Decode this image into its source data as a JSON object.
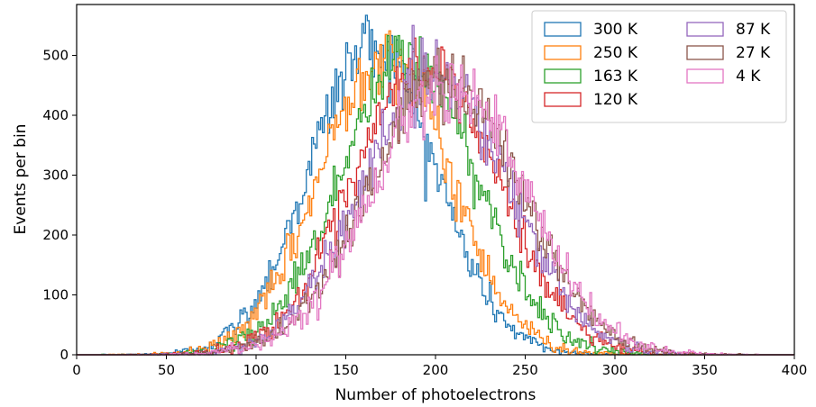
{
  "chart_data": {
    "type": "histogram",
    "xlabel": "Number of photoelectrons",
    "ylabel": "Events per bin",
    "xlim": [
      0,
      400
    ],
    "ylim": [
      0,
      585
    ],
    "x_ticks": [
      "0",
      "50",
      "100",
      "150",
      "200",
      "250",
      "300",
      "350",
      "400"
    ],
    "y_ticks": [
      "0",
      "100",
      "200",
      "300",
      "400",
      "500"
    ],
    "bin_width": 1,
    "histtype": "step",
    "legend_position": "top-right",
    "legend_columns": 2,
    "series": [
      {
        "name": "300 K",
        "color": "#1f77b4",
        "mean": 165,
        "sigma": 35,
        "peak": 520
      },
      {
        "name": "250 K",
        "color": "#ff7f0e",
        "mean": 172,
        "sigma": 36,
        "peak": 505
      },
      {
        "name": "163 K",
        "color": "#2ca02c",
        "mean": 185,
        "sigma": 38,
        "peak": 495
      },
      {
        "name": "120 K",
        "color": "#d62728",
        "mean": 195,
        "sigma": 40,
        "peak": 480
      },
      {
        "name": "87 K",
        "color": "#9467bd",
        "mean": 200,
        "sigma": 41,
        "peak": 470
      },
      {
        "name": "27 K",
        "color": "#8c564b",
        "mean": 205,
        "sigma": 42,
        "peak": 465
      },
      {
        "name": "4 K",
        "color": "#e377c2",
        "mean": 207,
        "sigma": 42,
        "peak": 460
      }
    ]
  }
}
